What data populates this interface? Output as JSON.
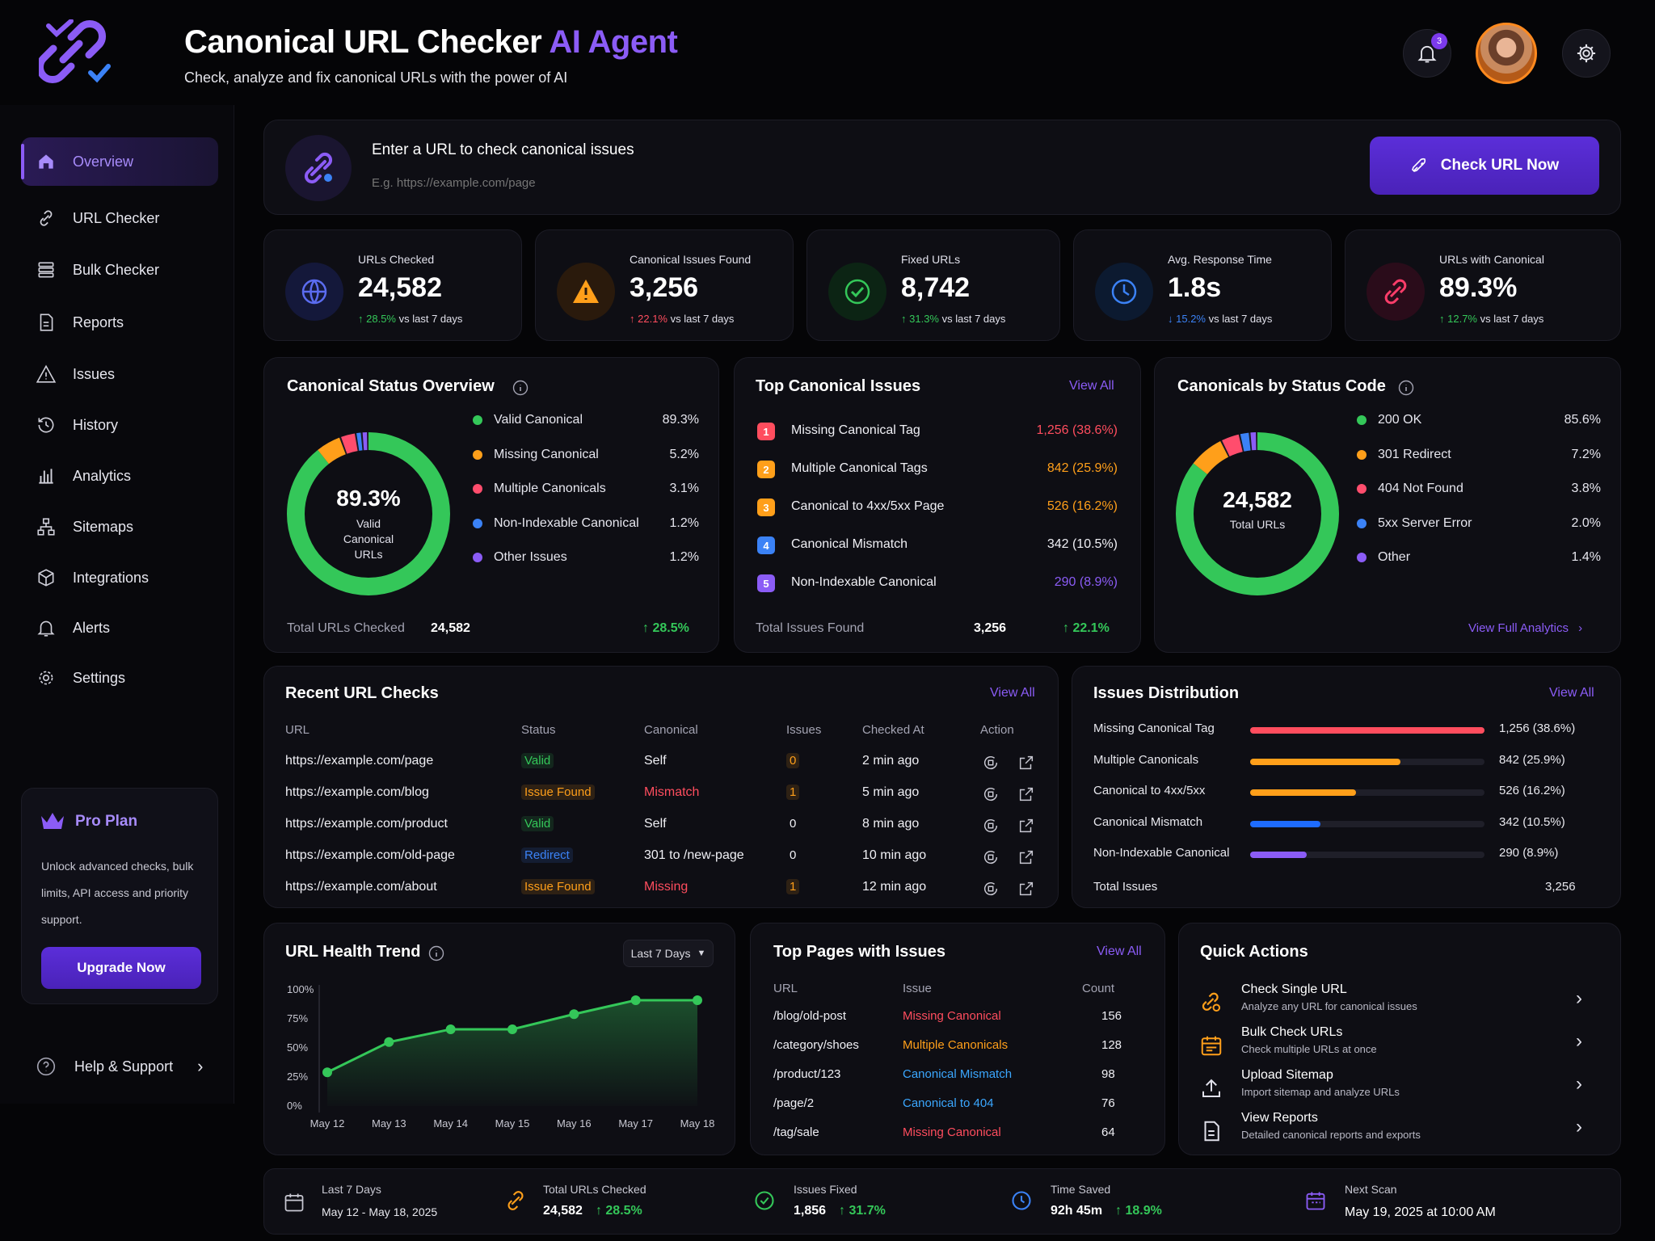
{
  "header": {
    "title_main": "Canonical URL Checker",
    "title_accent": "AI Agent",
    "subtitle": "Check, analyze and fix canonical URLs with the power of AI",
    "notification_count": "3"
  },
  "colors": {
    "accent": "#8b5cf6",
    "green": "#34c759",
    "red": "#ff4d5e",
    "orange": "#ff9f1a",
    "blue": "#3b82f6"
  },
  "sidebar": {
    "items": [
      {
        "label": "Overview",
        "icon": "home-icon"
      },
      {
        "label": "URL Checker",
        "icon": "link-check-icon"
      },
      {
        "label": "Bulk Checker",
        "icon": "bulk-list-icon"
      },
      {
        "label": "Reports",
        "icon": "report-icon"
      },
      {
        "label": "Issues",
        "icon": "warning-icon"
      },
      {
        "label": "History",
        "icon": "history-icon"
      },
      {
        "label": "Analytics",
        "icon": "analytics-icon"
      },
      {
        "label": "Sitemaps",
        "icon": "sitemap-icon"
      },
      {
        "label": "Integrations",
        "icon": "integrations-icon"
      },
      {
        "label": "Alerts",
        "icon": "bell-icon"
      },
      {
        "label": "Settings",
        "icon": "gear-icon"
      }
    ],
    "pro": {
      "title": "Pro Plan",
      "text": "Unlock advanced checks, bulk limits, API access and priority support.",
      "button": "Upgrade Now"
    },
    "help": "Help & Support"
  },
  "search": {
    "label": "Enter a URL to check canonical issues",
    "placeholder": "E.g. https://example.com/page",
    "button": "Check URL Now"
  },
  "stats": [
    {
      "label": "URLs Checked",
      "value": "24,582",
      "change": "28.5%",
      "suffix": "vs last 7 days"
    },
    {
      "label": "Canonical Issues Found",
      "value": "3,256",
      "change": "22.1%",
      "suffix": "vs last 7 days"
    },
    {
      "label": "Fixed URLs",
      "value": "8,742",
      "change": "31.3%",
      "suffix": "vs last 7 days"
    },
    {
      "label": "Avg. Response Time",
      "value": "1.8s",
      "change": "15.2%",
      "suffix": "vs last 7 days"
    },
    {
      "label": "URLs with Canonical",
      "value": "89.3%",
      "change": "12.7%",
      "suffix": "vs last 7 days"
    }
  ],
  "status_overview": {
    "title": "Canonical Status Overview",
    "center_value": "89.3%",
    "center_label": "Valid Canonical URLs",
    "legend": [
      {
        "label": "Valid Canonical",
        "value": "89.3%",
        "pct": 89.3,
        "color": "#34c759"
      },
      {
        "label": "Missing Canonical",
        "value": "5.2%",
        "pct": 5.2,
        "color": "#ff9f1a"
      },
      {
        "label": "Multiple Canonicals",
        "value": "3.1%",
        "pct": 3.1,
        "color": "#ff4d6d"
      },
      {
        "label": "Non-Indexable Canonical",
        "value": "1.2%",
        "pct": 1.2,
        "color": "#3b82f6"
      },
      {
        "label": "Other Issues",
        "value": "1.2%",
        "pct": 1.2,
        "color": "#8b5cf6"
      }
    ],
    "footer_label": "Total URLs Checked",
    "footer_value": "24,582",
    "footer_change": "28.5%"
  },
  "top_issues": {
    "title": "Top Canonical Issues",
    "view_all": "View All",
    "items": [
      {
        "n": "1",
        "label": "Missing Canonical Tag",
        "value": "1,256 (38.6%)",
        "color": "#ff4d5e"
      },
      {
        "n": "2",
        "label": "Multiple Canonical Tags",
        "value": "842 (25.9%)",
        "color": "#ff9f1a"
      },
      {
        "n": "3",
        "label": "Canonical to 4xx/5xx Page",
        "value": "526 (16.2%)",
        "color": "#ff9f1a"
      },
      {
        "n": "4",
        "label": "Canonical Mismatch",
        "value": "342 (10.5%)",
        "color": "#3b82f6"
      },
      {
        "n": "5",
        "label": "Non-Indexable Canonical",
        "value": "290 (8.9%)",
        "color": "#8b5cf6"
      }
    ],
    "footer_label": "Total Issues Found",
    "footer_value": "3,256",
    "footer_change": "22.1%"
  },
  "status_code": {
    "title": "Canonicals by Status Code",
    "center_value": "24,582",
    "center_label": "Total URLs",
    "legend": [
      {
        "label": "200 OK",
        "value": "85.6%",
        "pct": 85.6,
        "color": "#34c759"
      },
      {
        "label": "301 Redirect",
        "value": "7.2%",
        "pct": 7.2,
        "color": "#ff9f1a"
      },
      {
        "label": "404 Not Found",
        "value": "3.8%",
        "pct": 3.8,
        "color": "#ff4d6d"
      },
      {
        "label": "5xx Server Error",
        "value": "2.0%",
        "pct": 2.0,
        "color": "#3b82f6"
      },
      {
        "label": "Other",
        "value": "1.4%",
        "pct": 1.4,
        "color": "#8b5cf6"
      }
    ],
    "link": "View Full Analytics"
  },
  "recent": {
    "title": "Recent URL Checks",
    "view_all": "View All",
    "headers": [
      "URL",
      "Status",
      "Canonical",
      "Issues",
      "Checked At",
      "Action"
    ],
    "rows": [
      {
        "url": "https://example.com/page",
        "status": "Valid",
        "status_color": "#34c759",
        "canonical": "Self",
        "canonical_color": "#f0f0f5",
        "issues": "0",
        "issues_color": "#ff9f1a",
        "at": "2 min ago"
      },
      {
        "url": "https://example.com/blog",
        "status": "Issue Found",
        "status_color": "#ff9f1a",
        "canonical": "Mismatch",
        "canonical_color": "#ff4d5e",
        "issues": "1",
        "issues_color": "#ff9f1a",
        "at": "5 min ago"
      },
      {
        "url": "https://example.com/product",
        "status": "Valid",
        "status_color": "#34c759",
        "canonical": "Self",
        "canonical_color": "#f0f0f5",
        "issues": "0",
        "issues_color": "#f0f0f5",
        "at": "8 min ago"
      },
      {
        "url": "https://example.com/old-page",
        "status": "Redirect",
        "status_color": "#3b82f6",
        "canonical": "301 to /new-page",
        "canonical_color": "#f0f0f5",
        "issues": "0",
        "issues_color": "#f0f0f5",
        "at": "10 min ago"
      },
      {
        "url": "https://example.com/about",
        "status": "Issue Found",
        "status_color": "#ff9f1a",
        "canonical": "Missing",
        "canonical_color": "#ff4d5e",
        "issues": "1",
        "issues_color": "#ff9f1a",
        "at": "12 min ago"
      }
    ]
  },
  "distribution": {
    "title": "Issues Distribution",
    "view_all": "View All",
    "items": [
      {
        "label": "Missing Canonical Tag",
        "value": "1,256 (38.6%)",
        "pct": 100,
        "color": "#ff4d5e"
      },
      {
        "label": "Multiple Canonicals",
        "value": "842 (25.9%)",
        "pct": 64,
        "color": "#ff9f1a"
      },
      {
        "label": "Canonical to 4xx/5xx",
        "value": "526 (16.2%)",
        "pct": 45,
        "color": "#ff9f1a"
      },
      {
        "label": "Canonical Mismatch",
        "value": "342 (10.5%)",
        "pct": 30,
        "color": "#1e6cff"
      },
      {
        "label": "Non-Indexable Canonical",
        "value": "290 (8.9%)",
        "pct": 24,
        "color": "#8b5cf6"
      }
    ],
    "total_label": "Total Issues",
    "total_value": "3,256"
  },
  "chart_data": {
    "type": "area",
    "title": "URL Health Trend",
    "range_select": "Last 7 Days",
    "x": [
      "May 12",
      "May 13",
      "May 14",
      "May 15",
      "May 16",
      "May 17",
      "May 18"
    ],
    "y_ticks": [
      "100%",
      "75%",
      "50%",
      "25%",
      "0%"
    ],
    "ylim": [
      0,
      100
    ],
    "values": [
      29,
      55,
      66,
      66,
      79,
      91,
      91
    ],
    "color": "#34c759"
  },
  "top_pages": {
    "title": "Top Pages with Issues",
    "view_all": "View All",
    "headers": [
      "URL",
      "Issue",
      "Count"
    ],
    "rows": [
      {
        "url": "/blog/old-post",
        "issue": "Missing Canonical",
        "color": "#ff4d5e",
        "count": "156"
      },
      {
        "url": "/category/shoes",
        "issue": "Multiple Canonicals",
        "color": "#ff9f1a",
        "count": "128"
      },
      {
        "url": "/product/123",
        "issue": "Canonical Mismatch",
        "color": "#3ba7ff",
        "count": "98"
      },
      {
        "url": "/page/2",
        "issue": "Canonical to 404",
        "color": "#3ba7ff",
        "count": "76"
      },
      {
        "url": "/tag/sale",
        "issue": "Missing Canonical",
        "color": "#ff4d5e",
        "count": "64"
      }
    ]
  },
  "quick_actions": {
    "title": "Quick Actions",
    "items": [
      {
        "title": "Check Single URL",
        "sub": "Analyze any URL for canonical issues"
      },
      {
        "title": "Bulk Check URLs",
        "sub": "Check multiple URLs at once"
      },
      {
        "title": "Upload Sitemap",
        "sub": "Import sitemap and analyze URLs"
      },
      {
        "title": "View Reports",
        "sub": "Detailed canonical reports and exports"
      }
    ]
  },
  "footer": {
    "period_label": "Last 7 Days",
    "period_value": "May 12 - May 18, 2025",
    "total_label": "Total URLs Checked",
    "total_value": "24,582",
    "total_change": "28.5%",
    "fixed_label": "Issues Fixed",
    "fixed_value": "1,856",
    "fixed_change": "31.7%",
    "saved_label": "Time Saved",
    "saved_value": "92h 45m",
    "saved_change": "18.9%",
    "next_label": "Next Scan",
    "next_value": "May 19, 2025 at 10:00 AM"
  }
}
